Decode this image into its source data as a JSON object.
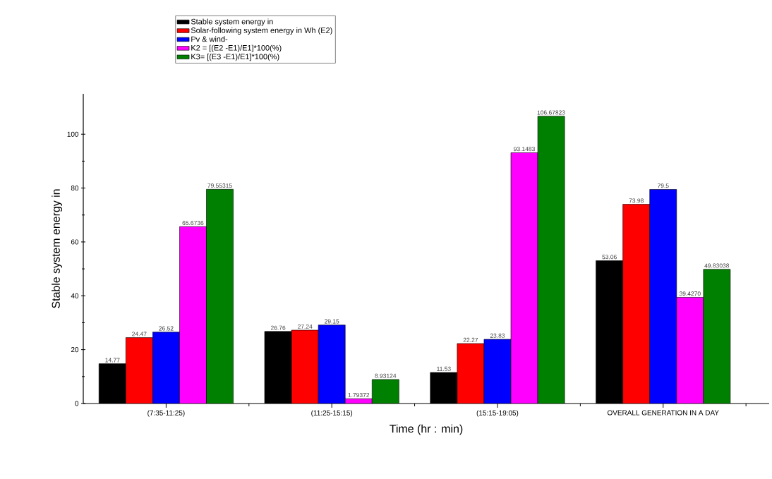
{
  "chart_data": {
    "type": "bar",
    "xlabel": "Time  (hr : min)",
    "ylabel": "Stable system energy in",
    "categories": [
      "(7:35-11:25)",
      "(11:25-15:15)",
      "(15:15-19:05)",
      "OVERALL GENERATION IN A DAY"
    ],
    "series": [
      {
        "name": "Stable system energy in",
        "color": "#000000",
        "values": [
          14.77,
          26.76,
          11.53,
          53.06
        ],
        "value_labels": [
          "14.77",
          "26.76",
          "11.53",
          "53.06"
        ]
      },
      {
        "name": "Solar-following system energy in Wh (E2)",
        "color": "#ff0000",
        "values": [
          24.47,
          27.24,
          22.27,
          73.98
        ],
        "value_labels": [
          "24.47",
          "27.24",
          "22.27",
          "73.98"
        ]
      },
      {
        "name": "Pv & wind-",
        "color": "#0000ff",
        "values": [
          26.52,
          29.15,
          23.83,
          79.5
        ],
        "value_labels": [
          "26.52",
          "29.15",
          "23.83",
          "79.5"
        ]
      },
      {
        "name": "K2 = [(E2 -E1)/E1]*100(%)",
        "color": "#ff00ff",
        "values": [
          65.6736,
          1.79372,
          93.1483,
          39.427
        ],
        "value_labels": [
          "65.6736",
          "1.79372",
          "93.1483",
          "39.4270"
        ]
      },
      {
        "name": "K3= [(E3 -E1)/E1]*100(%)",
        "color": "#008000",
        "values": [
          79.55315,
          8.93124,
          106.67823,
          49.83038
        ],
        "value_labels": [
          "79.55315",
          "8.93124",
          "106.67823",
          "49.83038"
        ]
      }
    ],
    "ylim": [
      0,
      115
    ],
    "yticks": [
      0,
      20,
      40,
      60,
      80,
      100
    ],
    "grid": false,
    "legend": "top"
  }
}
